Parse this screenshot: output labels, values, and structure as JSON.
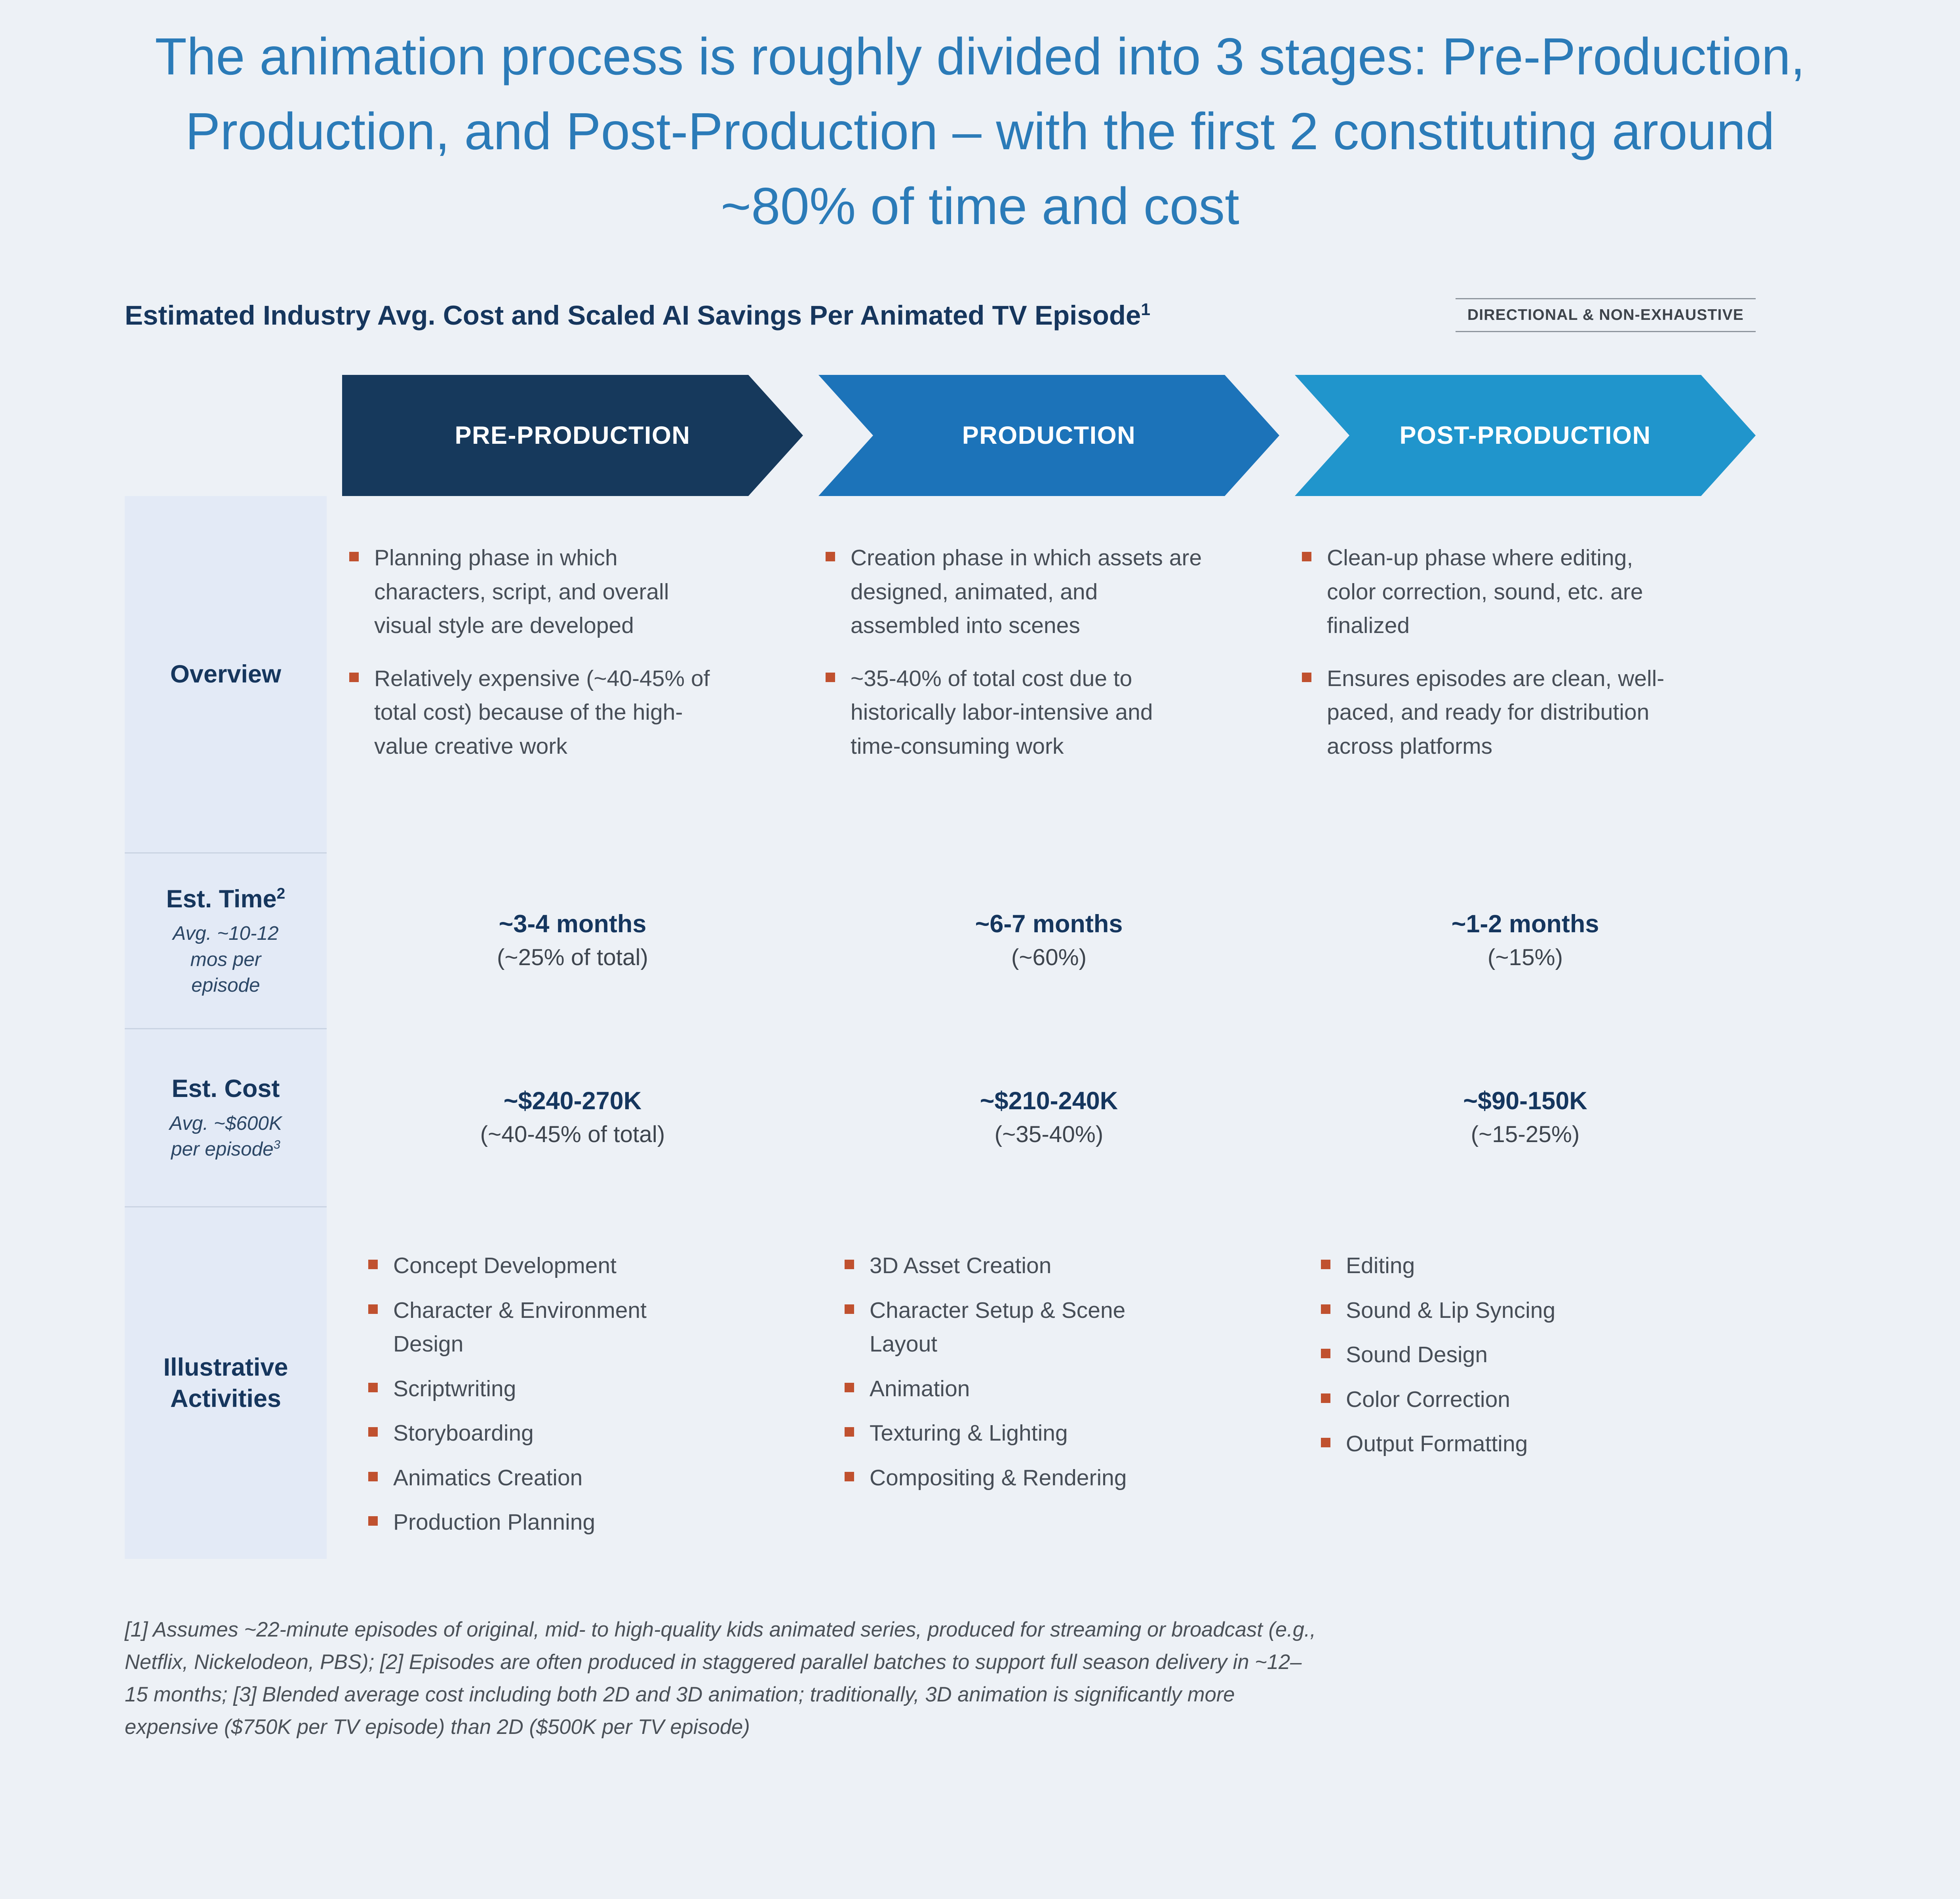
{
  "page": {
    "title": "The animation process is roughly divided into 3 stages: Pre-Production, Production, and Post-Production – with the first 2 constituting around ~80% of time and cost",
    "heading": "Estimated Industry Avg. Cost and Scaled AI Savings Per Animated TV Episode",
    "heading_sup": "1",
    "tag": "DIRECTIONAL & NON-EXHAUSTIVE",
    "footnote": "[1] Assumes ~22-minute episodes of original, mid- to high-quality kids animated series, produced for streaming or broadcast (e.g., Netflix, Nickelodeon, PBS); [2] Episodes are often produced in staggered parallel batches to support full season delivery in ~12–15 months; [3] Blended average cost including both 2D and 3D animation; traditionally, 3D animation is significantly more expensive ($750K per TV episode) than 2D ($500K per TV episode)"
  },
  "stages": [
    {
      "name": "PRE-PRODUCTION",
      "color": "#16395c"
    },
    {
      "name": "PRODUCTION",
      "color": "#1c73b9"
    },
    {
      "name": "POST-PRODUCTION",
      "color": "#2095cc"
    }
  ],
  "rows": {
    "overview": {
      "label": "Overview",
      "columns": [
        {
          "bullets": [
            "Planning phase in which characters, script, and overall visual style are developed",
            "Relatively expensive (~40-45% of total cost) because of the high-value creative work"
          ]
        },
        {
          "bullets": [
            "Creation phase in which assets are designed, animated, and assembled into scenes",
            "~35-40% of total cost due to historically labor-intensive and time-consuming work"
          ]
        },
        {
          "bullets": [
            "Clean-up phase where editing, color correction, sound, etc. are finalized",
            "Ensures episodes are clean, well-paced, and ready for distribution across platforms"
          ]
        }
      ]
    },
    "time": {
      "label": "Est. Time",
      "label_sup": "2",
      "note": "Avg. ~10-12 mos per episode",
      "values": [
        {
          "main": "~3-4 months",
          "sub": "(~25% of total)"
        },
        {
          "main": "~6-7 months",
          "sub": "(~60%)"
        },
        {
          "main": "~1-2 months",
          "sub": "(~15%)"
        }
      ]
    },
    "cost": {
      "label": "Est. Cost",
      "note": "Avg. ~$600K per episode",
      "note_sup": "3",
      "values": [
        {
          "main": "~$240-270K",
          "sub": "(~40-45% of total)"
        },
        {
          "main": "~$210-240K",
          "sub": "(~35-40%)"
        },
        {
          "main": "~$90-150K",
          "sub": "(~15-25%)"
        }
      ]
    },
    "activities": {
      "label": "Illustrative Activities",
      "columns": [
        {
          "bullets": [
            "Concept Development",
            "Character & Environment Design",
            "Scriptwriting",
            "Storyboarding",
            "Animatics Creation",
            "Production Planning"
          ]
        },
        {
          "bullets": [
            "3D Asset Creation",
            "Character Setup & Scene Layout",
            "Animation",
            "Texturing & Lighting",
            "Compositing & Rendering"
          ]
        },
        {
          "bullets": [
            "Editing",
            "Sound & Lip Syncing",
            "Sound Design",
            "Color Correction",
            "Output Formatting"
          ]
        }
      ]
    }
  },
  "colors": {
    "background": "#edf1f6",
    "title_blue": "#2b7bb8",
    "navy": "#16365d",
    "stage_pre_production": "#16395c",
    "stage_production": "#1c73b9",
    "stage_post_production": "#2095cc",
    "bullet_accent": "#c0512f",
    "label_panel_bg": "#e3eaf6",
    "body_text": "#474e57"
  }
}
